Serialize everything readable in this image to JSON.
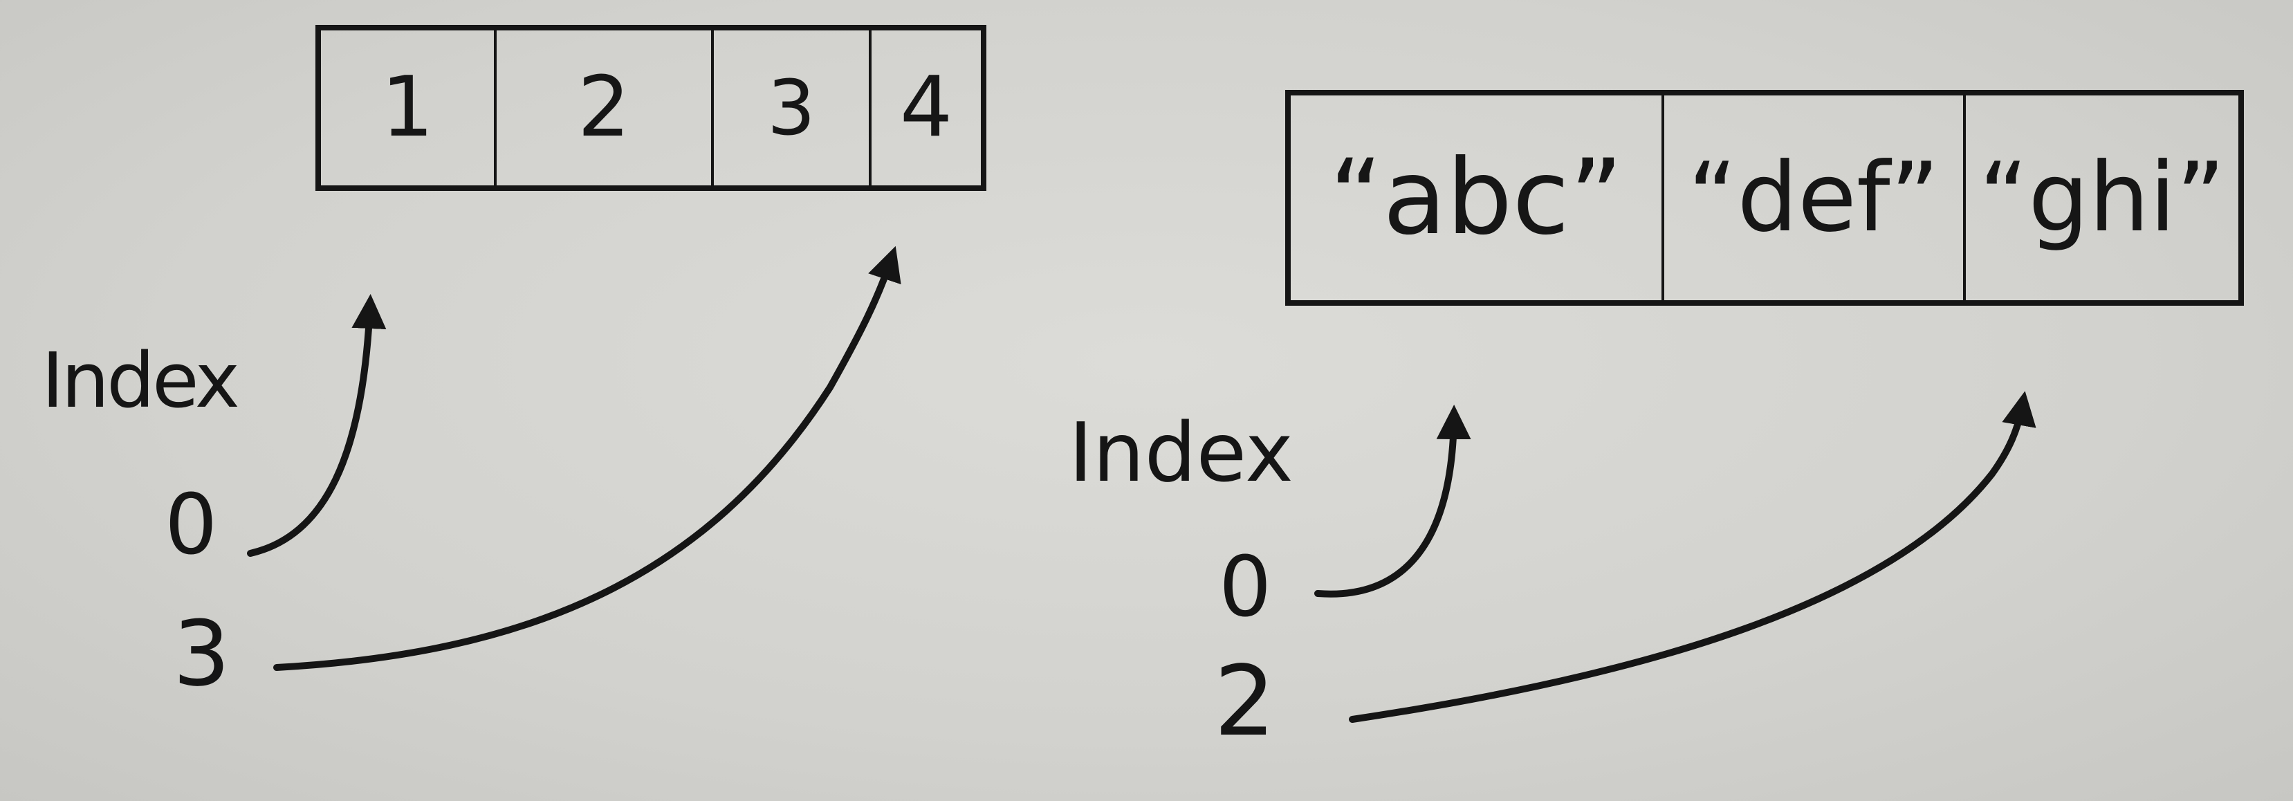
{
  "left_array": {
    "cells": [
      "1",
      "2",
      "3",
      "4"
    ],
    "index_label": "Index",
    "index_values": [
      "0",
      "3"
    ]
  },
  "right_array": {
    "cells": [
      "“abc”",
      "“def”",
      "“ghi”"
    ],
    "index_label": "Index",
    "index_values": [
      "0",
      "2"
    ]
  },
  "ink_color": "#151515",
  "paper_color": "#d6d6d2"
}
